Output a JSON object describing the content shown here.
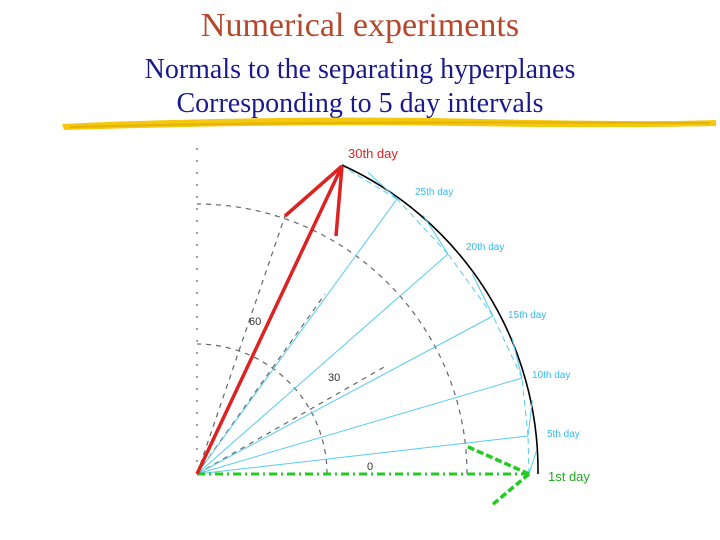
{
  "slide": {
    "title": "Numerical experiments",
    "subtitle_line1": "Normals to the separating hyperplanes",
    "subtitle_line2": "Corresponding to 5 day intervals"
  },
  "diagram": {
    "ring_labels": [
      "60",
      "30",
      "0"
    ],
    "day_labels": [
      "30th day",
      "25th day",
      "20th day",
      "15th day",
      "10th day",
      "5th day",
      "1st day"
    ],
    "colors": {
      "title": "#b5482a",
      "subtitle": "#1a1a8c",
      "underline": "#f2c500",
      "highlight_normal": "#dd2222",
      "first_day": "#22cc22",
      "intermediate_normals": "#55ccee",
      "grid": "#666666",
      "outer_arc": "#000000"
    }
  }
}
